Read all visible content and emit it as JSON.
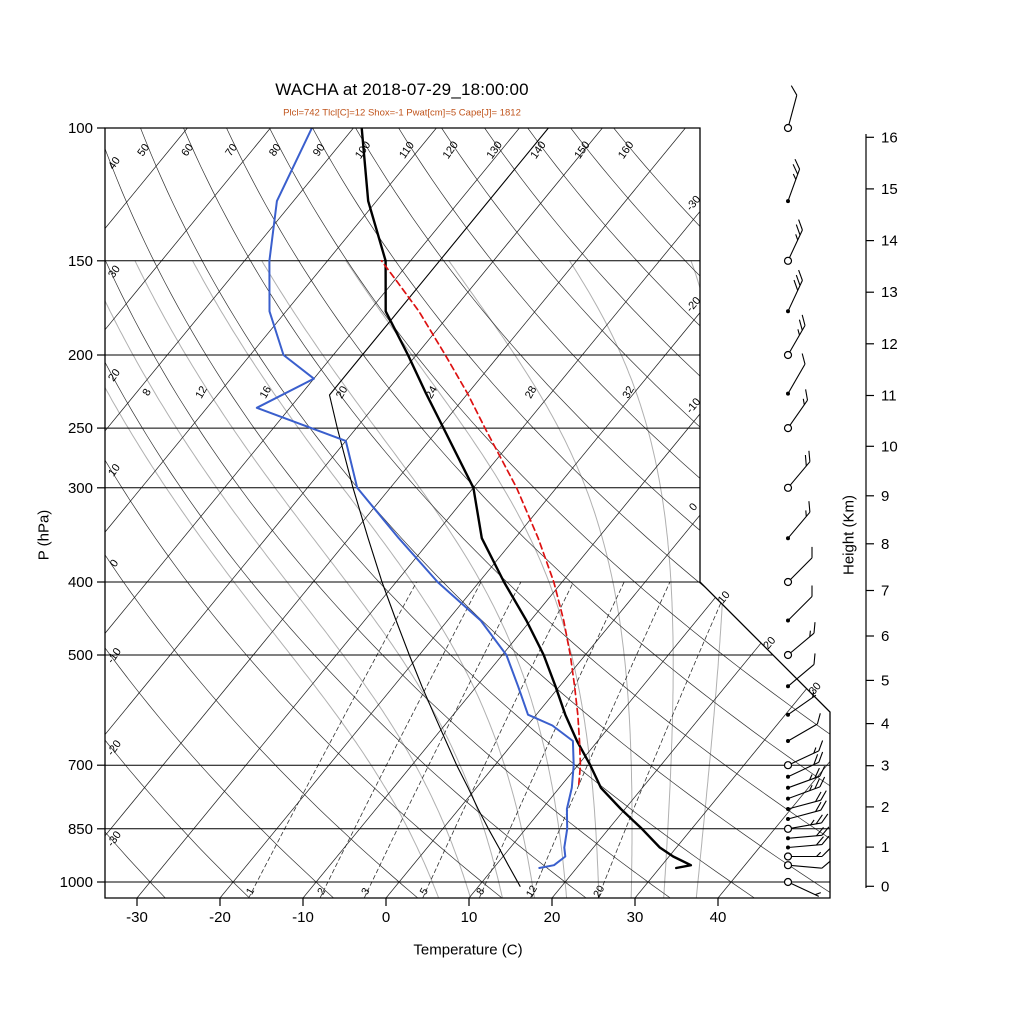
{
  "header": {
    "title": "WACHA at 2018-07-29_18:00:00",
    "subtitle": "Plcl=742 Tlcl[C]=12 Shox=-1 Pwat[cm]=5 Cape[J]= 1812",
    "subtitle_color": "#c0541c"
  },
  "axes": {
    "pressure_label": "P (hPa)",
    "temperature_label": "Temperature (C)",
    "height_label": "Height (Km)",
    "pressure_ticks": [
      100,
      150,
      200,
      250,
      300,
      400,
      500,
      700,
      850,
      1000
    ],
    "temperature_ticks": [
      -30,
      -20,
      -10,
      0,
      10,
      20,
      30,
      40
    ],
    "height_ticks": [
      0,
      1,
      2,
      3,
      4,
      5,
      6,
      7,
      8,
      9,
      10,
      11,
      12,
      13,
      14,
      15,
      16
    ]
  },
  "chart_data": {
    "type": "skewt-log-p",
    "station": "WACHA",
    "datetime": "2018-07-29_18:00:00",
    "indices": {
      "Plcl_hPa": 742,
      "Tlcl_C": 12,
      "Showalter": -1,
      "Pwat_cm": 5,
      "Cape_J": 1812
    },
    "pressure_range_hPa": [
      100,
      1050
    ],
    "temperature_axis_C": [
      -30,
      40
    ],
    "background": {
      "grid_color": "#000000",
      "moist_adiabat_color": "#b0b0b0",
      "mixing_ratio_color": "#333333",
      "isotherm_step_C": 10,
      "isotherm_edge_labels": [
        0,
        -10,
        -20,
        -30
      ],
      "isotherm_diagonal_labels": [
        10,
        20,
        30
      ],
      "dry_adiabat_values_C": [
        -30,
        -20,
        -10,
        0,
        10,
        20,
        30,
        40,
        50,
        60,
        70,
        80,
        90,
        100,
        110,
        120,
        130,
        140,
        150,
        160
      ],
      "dry_adiabat_top_labels": [
        50,
        60,
        70,
        80,
        90,
        100,
        110,
        120,
        130,
        140,
        150,
        160
      ],
      "dry_adiabat_left_labels": [
        40,
        30,
        20,
        10,
        0,
        -10,
        -20,
        -30
      ],
      "moist_adiabat_values_C": [
        4,
        8,
        12,
        16,
        20,
        24,
        28,
        32,
        36
      ],
      "moist_adiabat_labels": [
        8,
        12,
        16,
        20,
        24,
        28,
        32
      ],
      "mixing_ratio_g_kg": [
        1,
        2,
        3,
        5,
        8,
        12,
        20
      ]
    },
    "series": {
      "standard_atmosphere": {
        "color": "#000000",
        "width": 1.1,
        "dashed": false,
        "points": [
          [
            1013,
            15
          ],
          [
            950,
            11.5
          ],
          [
            900,
            8.6
          ],
          [
            850,
            5.5
          ],
          [
            800,
            2.3
          ],
          [
            750,
            -1
          ],
          [
            700,
            -4.6
          ],
          [
            650,
            -8.3
          ],
          [
            600,
            -12.3
          ],
          [
            550,
            -16.6
          ],
          [
            500,
            -21.2
          ],
          [
            450,
            -26.2
          ],
          [
            400,
            -31.7
          ],
          [
            350,
            -37.7
          ],
          [
            300,
            -44.5
          ],
          [
            250,
            -52.3
          ],
          [
            226,
            -56.5
          ],
          [
            200,
            -56.5
          ],
          [
            150,
            -56.5
          ],
          [
            100,
            -56.5
          ]
        ]
      },
      "temperature": {
        "color": "#000000",
        "width": 2.4,
        "dashed": false,
        "points": [
          [
            958,
            32
          ],
          [
            950,
            33.5
          ],
          [
            925,
            30.5
          ],
          [
            900,
            28
          ],
          [
            850,
            24
          ],
          [
            800,
            19.5
          ],
          [
            750,
            15
          ],
          [
            700,
            11.5
          ],
          [
            650,
            7.5
          ],
          [
            600,
            3.5
          ],
          [
            550,
            -0.5
          ],
          [
            500,
            -5
          ],
          [
            450,
            -10.5
          ],
          [
            400,
            -17
          ],
          [
            350,
            -24
          ],
          [
            300,
            -30
          ],
          [
            250,
            -39.5
          ],
          [
            225,
            -45
          ],
          [
            200,
            -51
          ],
          [
            175,
            -58
          ],
          [
            150,
            -63
          ],
          [
            125,
            -71
          ],
          [
            100,
            -79
          ]
        ]
      },
      "dewpoint": {
        "color": "#3a5fcd",
        "width": 2.0,
        "dashed": false,
        "points": [
          [
            958,
            15.5
          ],
          [
            950,
            17
          ],
          [
            925,
            17.5
          ],
          [
            900,
            16.5
          ],
          [
            850,
            15
          ],
          [
            800,
            13
          ],
          [
            750,
            11.5
          ],
          [
            700,
            9.5
          ],
          [
            650,
            7
          ],
          [
            620,
            3
          ],
          [
            600,
            -1
          ],
          [
            550,
            -5
          ],
          [
            500,
            -9.5
          ],
          [
            450,
            -16
          ],
          [
            400,
            -25
          ],
          [
            350,
            -34
          ],
          [
            300,
            -44
          ],
          [
            260,
            -50
          ],
          [
            235,
            -64
          ],
          [
            215,
            -60
          ],
          [
            200,
            -66
          ],
          [
            175,
            -72
          ],
          [
            150,
            -77
          ],
          [
            125,
            -82
          ],
          [
            100,
            -85
          ]
        ]
      },
      "parcel": {
        "color": "#dd1111",
        "width": 1.7,
        "dashed": true,
        "points": [
          [
            742,
            12
          ],
          [
            700,
            10.3
          ],
          [
            650,
            7.8
          ],
          [
            600,
            5
          ],
          [
            550,
            1.8
          ],
          [
            500,
            -1.8
          ],
          [
            450,
            -6
          ],
          [
            400,
            -11
          ],
          [
            350,
            -17.2
          ],
          [
            300,
            -24.8
          ],
          [
            250,
            -34.5
          ],
          [
            225,
            -40
          ],
          [
            200,
            -46.5
          ],
          [
            175,
            -54
          ],
          [
            160,
            -59.5
          ],
          [
            150,
            -63.5
          ]
        ]
      }
    },
    "winds": [
      {
        "p": 1000,
        "speed_kt": 8,
        "dir_deg": 115,
        "marker": "circle"
      },
      {
        "p": 950,
        "speed_kt": 10,
        "dir_deg": 95,
        "marker": "circle"
      },
      {
        "p": 925,
        "speed_kt": 15,
        "dir_deg": 90,
        "marker": "circle"
      },
      {
        "p": 900,
        "speed_kt": 20,
        "dir_deg": 85,
        "marker": "dot"
      },
      {
        "p": 875,
        "speed_kt": 20,
        "dir_deg": 85,
        "marker": "dot"
      },
      {
        "p": 850,
        "speed_kt": 25,
        "dir_deg": 80,
        "marker": "circle"
      },
      {
        "p": 825,
        "speed_kt": 20,
        "dir_deg": 75,
        "marker": "dot"
      },
      {
        "p": 800,
        "speed_kt": 20,
        "dir_deg": 75,
        "marker": "dot"
      },
      {
        "p": 775,
        "speed_kt": 25,
        "dir_deg": 70,
        "marker": "dot"
      },
      {
        "p": 750,
        "speed_kt": 25,
        "dir_deg": 70,
        "marker": "dot"
      },
      {
        "p": 725,
        "speed_kt": 20,
        "dir_deg": 65,
        "marker": "dot"
      },
      {
        "p": 700,
        "speed_kt": 15,
        "dir_deg": 65,
        "marker": "circle"
      },
      {
        "p": 650,
        "speed_kt": 10,
        "dir_deg": 60,
        "marker": "dot"
      },
      {
        "p": 600,
        "speed_kt": 5,
        "dir_deg": 55,
        "marker": "dot"
      },
      {
        "p": 550,
        "speed_kt": 10,
        "dir_deg": 50,
        "marker": "dot"
      },
      {
        "p": 500,
        "speed_kt": 15,
        "dir_deg": 50,
        "marker": "circle"
      },
      {
        "p": 450,
        "speed_kt": 10,
        "dir_deg": 45,
        "marker": "dot"
      },
      {
        "p": 400,
        "speed_kt": 10,
        "dir_deg": 45,
        "marker": "circle"
      },
      {
        "p": 350,
        "speed_kt": 15,
        "dir_deg": 40,
        "marker": "dot"
      },
      {
        "p": 300,
        "speed_kt": 20,
        "dir_deg": 40,
        "marker": "circle"
      },
      {
        "p": 250,
        "speed_kt": 15,
        "dir_deg": 35,
        "marker": "circle"
      },
      {
        "p": 225,
        "speed_kt": 10,
        "dir_deg": 30,
        "marker": "dot"
      },
      {
        "p": 200,
        "speed_kt": 25,
        "dir_deg": 30,
        "marker": "circle"
      },
      {
        "p": 175,
        "speed_kt": 30,
        "dir_deg": 25,
        "marker": "dot"
      },
      {
        "p": 150,
        "speed_kt": 25,
        "dir_deg": 25,
        "marker": "circle"
      },
      {
        "p": 125,
        "speed_kt": 25,
        "dir_deg": 20,
        "marker": "dot"
      },
      {
        "p": 100,
        "speed_kt": 10,
        "dir_deg": 15,
        "marker": "circle"
      }
    ]
  }
}
